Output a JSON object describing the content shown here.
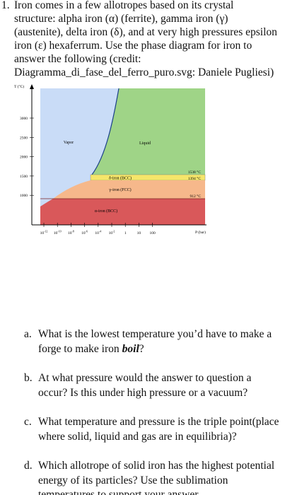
{
  "intro": {
    "number": "1.",
    "lines": [
      "Iron comes in a few allotropes based on its crystal",
      "structure: alpha iron (α) (ferrite), gamma iron (γ)",
      "(austenite), delta iron (δ), and at very high pressures epsilon",
      "iron (ε) hexaferrum. Use the phase diagram for iron to",
      "answer the following (credit:",
      "Diagramma_di_fase_del_ferro_puro.svg: Daniele Pugliesi)"
    ]
  },
  "figure": {
    "y_label": "T (°C)",
    "x_label": "P (bar)",
    "y_ticks": [
      "3000",
      "2500",
      "2000",
      "1500",
      "1000"
    ],
    "x_ticks": [
      {
        "base": "10",
        "exp": "-12"
      },
      {
        "base": "10",
        "exp": "-10"
      },
      {
        "base": "10",
        "exp": "-8"
      },
      {
        "base": "10",
        "exp": "-6"
      },
      {
        "base": "10",
        "exp": "-4"
      },
      {
        "base": "10",
        "exp": "-2"
      },
      {
        "base": "1"
      },
      {
        "base": "10"
      },
      {
        "base": "100"
      }
    ],
    "regions": {
      "vapor": "Vapor",
      "liquid": "Liquid",
      "delta": "δ-iron (BCC)",
      "gamma": "γ-iron (FCC)",
      "alpha": "α-iron (BCC)"
    },
    "temperatures": [
      "1538 °C",
      "1394 °C",
      "912 °C"
    ]
  },
  "questions": [
    {
      "label": "a.",
      "lines": [
        "What is the lowest temperature you’d have to make a",
        "forge to make iron"
      ],
      "emphasis": "boil",
      "tail": "?"
    },
    {
      "label": "b.",
      "lines": [
        "At what pressure would the answer to question a",
        "occur? Is this under high pressure or a vacuum?"
      ]
    },
    {
      "label": "c.",
      "lines": [
        "What temperature and pressure is the triple point(place",
        "where solid, liquid and gas are in equilibria)?"
      ]
    },
    {
      "label": "d.",
      "lines": [
        "Which allotrope of solid iron has the highest potential",
        "energy of its particles? Use the sublimation",
        "temperatures to support your answer."
      ]
    }
  ]
}
